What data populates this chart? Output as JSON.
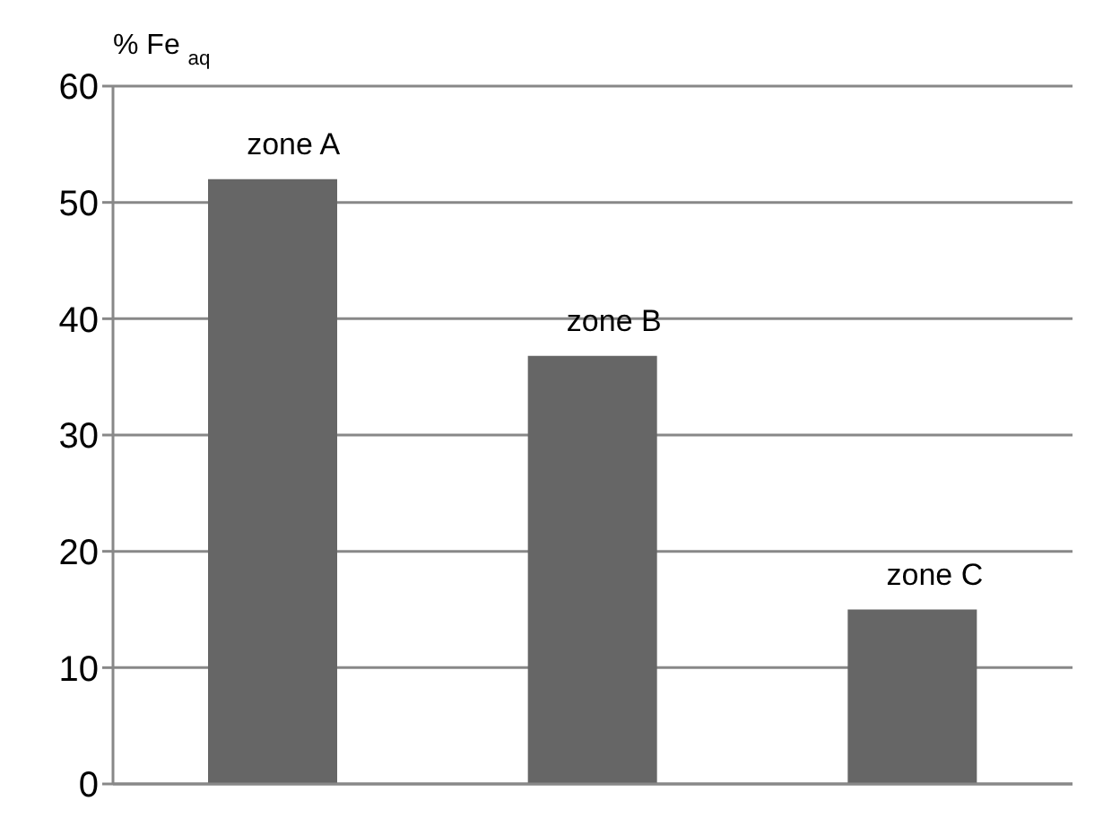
{
  "chart_data": {
    "type": "bar",
    "ylabel": "% Fe $_{aq}$",
    "categories": [
      "zone A",
      "zone B",
      "zone C"
    ],
    "values": [
      52,
      36.8,
      15
    ],
    "color": "#666666",
    "ylim": [
      0,
      60
    ],
    "yticks": [
      0,
      10,
      20,
      30,
      40,
      50,
      60
    ],
    "grid": "y",
    "tick_labels": "y"
  }
}
